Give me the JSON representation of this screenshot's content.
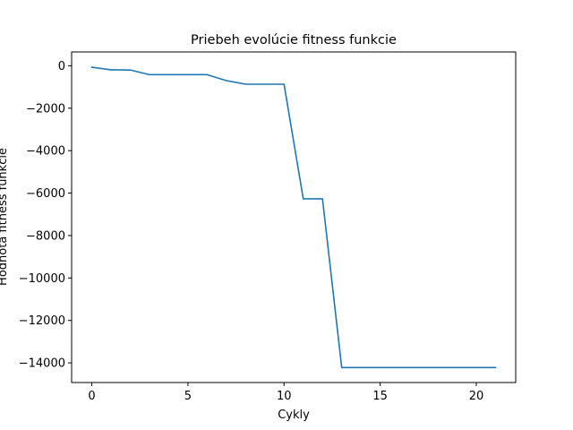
{
  "chart_data": {
    "type": "line",
    "title": "Priebeh evolúcie fitness funkcie",
    "xlabel": "Cykly",
    "ylabel": "Hodnota fitness funkcie",
    "xlim": [
      -1.05,
      22.05
    ],
    "ylim": [
      -14925,
      650
    ],
    "xticks": [
      0,
      5,
      10,
      15,
      20
    ],
    "yticks": [
      0,
      -2000,
      -4000,
      -6000,
      -8000,
      -10000,
      -12000,
      -14000
    ],
    "xtick_labels": [
      "0",
      "5",
      "10",
      "15",
      "20"
    ],
    "ytick_labels": [
      "0",
      "−2000",
      "−4000",
      "−6000",
      "−8000",
      "−10000",
      "−12000",
      "−14000"
    ],
    "grid": false,
    "series": [
      {
        "color": "#1f77b4",
        "x": [
          0,
          1,
          2,
          3,
          4,
          5,
          6,
          7,
          8,
          9,
          10,
          11,
          12,
          13,
          14,
          15,
          16,
          17,
          18,
          19,
          20,
          21
        ],
        "values": [
          -70,
          -190,
          -200,
          -420,
          -420,
          -420,
          -420,
          -700,
          -870,
          -870,
          -870,
          -6270,
          -6270,
          -14220,
          -14220,
          -14220,
          -14220,
          -14220,
          -14220,
          -14220,
          -14220,
          -14220
        ]
      }
    ]
  }
}
